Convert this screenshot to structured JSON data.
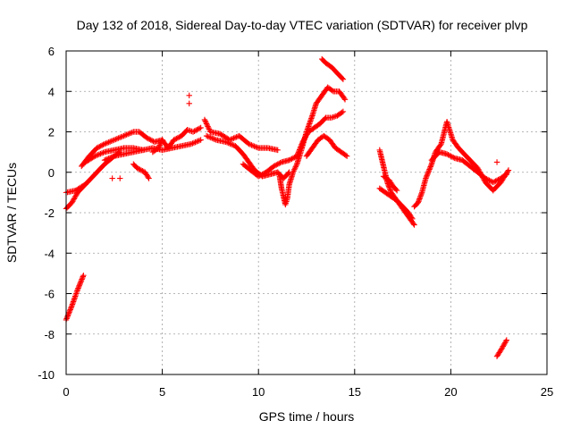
{
  "colors": {
    "series": "#ff0000",
    "grid": "#a0a0a0",
    "axis": "#000000",
    "background": "#ffffff"
  },
  "chart_data": {
    "type": "scatter",
    "title": "Day 132 of 2018, Sidereal Day-to-day VTEC variation (SDTVAR) for receiver plvp",
    "xlabel": "GPS time / hours",
    "ylabel": "SDTVAR / TECUs",
    "xlim": [
      0,
      25
    ],
    "ylim": [
      -10,
      6
    ],
    "grid": true,
    "marker": "+",
    "xticks": [
      0,
      5,
      10,
      15,
      20,
      25
    ],
    "yticks": [
      -10,
      -8,
      -6,
      -4,
      -2,
      0,
      2,
      4,
      6
    ],
    "series": [
      {
        "name": "SDTVAR",
        "segments": [
          [
            [
              0.0,
              -1.0
            ],
            [
              0.5,
              -0.9
            ],
            [
              1.0,
              -0.6
            ]
          ],
          [
            [
              0.0,
              -1.8
            ],
            [
              0.3,
              -1.5
            ],
            [
              0.6,
              -1.0
            ],
            [
              1.0,
              -0.6
            ],
            [
              1.5,
              -0.1
            ],
            [
              2.0,
              0.4
            ],
            [
              2.5,
              0.8
            ],
            [
              3.0,
              0.9
            ],
            [
              3.5,
              1.0
            ],
            [
              4.0,
              1.1
            ],
            [
              4.5,
              1.2
            ],
            [
              5.0,
              1.1
            ],
            [
              5.5,
              1.2
            ],
            [
              6.0,
              1.3
            ],
            [
              6.5,
              1.4
            ],
            [
              7.0,
              1.6
            ]
          ],
          [
            [
              0.8,
              0.3
            ],
            [
              1.2,
              0.8
            ],
            [
              1.6,
              1.2
            ],
            [
              2.0,
              1.4
            ],
            [
              2.5,
              1.6
            ],
            [
              3.0,
              1.8
            ],
            [
              3.5,
              2.0
            ],
            [
              3.8,
              2.0
            ],
            [
              4.2,
              1.7
            ],
            [
              4.6,
              1.5
            ],
            [
              5.0,
              1.6
            ]
          ],
          [
            [
              2.0,
              0.6
            ],
            [
              2.5,
              0.8
            ],
            [
              2.8,
              1.0
            ]
          ],
          [
            [
              1.0,
              0.5
            ],
            [
              1.5,
              0.8
            ],
            [
              2.0,
              1.0
            ],
            [
              2.5,
              1.1
            ],
            [
              3.0,
              1.2
            ],
            [
              3.5,
              1.2
            ],
            [
              4.0,
              1.1
            ]
          ],
          [
            [
              3.5,
              0.4
            ],
            [
              3.7,
              0.2
            ],
            [
              3.9,
              0.1
            ],
            [
              4.1,
              0.0
            ],
            [
              4.3,
              -0.3
            ]
          ],
          [
            [
              4.5,
              1.0
            ],
            [
              4.8,
              1.2
            ],
            [
              5.0,
              1.6
            ],
            [
              5.3,
              1.2
            ],
            [
              5.6,
              1.6
            ],
            [
              6.0,
              1.8
            ],
            [
              6.3,
              2.1
            ],
            [
              6.6,
              2.0
            ],
            [
              7.0,
              2.2
            ]
          ],
          [
            [
              7.2,
              2.6
            ],
            [
              7.5,
              2.0
            ],
            [
              8.0,
              1.9
            ],
            [
              8.5,
              1.6
            ],
            [
              9.0,
              1.8
            ],
            [
              9.5,
              1.4
            ],
            [
              10.0,
              1.2
            ],
            [
              10.5,
              1.2
            ],
            [
              11.0,
              1.1
            ]
          ],
          [
            [
              7.3,
              1.8
            ],
            [
              7.8,
              1.6
            ],
            [
              8.3,
              1.5
            ],
            [
              8.8,
              1.3
            ],
            [
              9.2,
              0.9
            ],
            [
              9.5,
              0.5
            ],
            [
              9.8,
              0.1
            ],
            [
              10.2,
              -0.2
            ],
            [
              10.6,
              -0.1
            ],
            [
              11.0,
              0.0
            ],
            [
              11.3,
              -0.3
            ],
            [
              11.6,
              0.0
            ]
          ],
          [
            [
              9.2,
              0.4
            ],
            [
              9.6,
              0.1
            ],
            [
              10.0,
              -0.2
            ],
            [
              10.4,
              0.0
            ],
            [
              10.8,
              0.3
            ],
            [
              11.2,
              0.5
            ],
            [
              11.6,
              0.6
            ],
            [
              12.0,
              0.8
            ]
          ],
          [
            [
              11.1,
              -0.2
            ],
            [
              11.2,
              -0.8
            ],
            [
              11.3,
              -1.2
            ],
            [
              11.4,
              -1.6
            ],
            [
              11.5,
              -1.3
            ],
            [
              11.6,
              -0.6
            ],
            [
              11.8,
              0.0
            ],
            [
              12.0,
              0.4
            ],
            [
              12.2,
              1.0
            ],
            [
              12.5,
              2.0
            ],
            [
              12.8,
              2.8
            ],
            [
              13.0,
              3.4
            ],
            [
              13.3,
              3.8
            ],
            [
              13.6,
              4.2
            ],
            [
              13.9,
              4.0
            ],
            [
              14.2,
              4.0
            ],
            [
              14.5,
              3.6
            ]
          ],
          [
            [
              12.0,
              0.8
            ],
            [
              12.3,
              1.5
            ],
            [
              12.6,
              2.0
            ],
            [
              12.9,
              2.2
            ],
            [
              13.2,
              2.4
            ],
            [
              13.5,
              2.7
            ],
            [
              13.8,
              2.7
            ],
            [
              14.1,
              2.8
            ],
            [
              14.4,
              3.0
            ]
          ],
          [
            [
              12.5,
              0.8
            ],
            [
              12.8,
              1.2
            ],
            [
              13.1,
              1.6
            ],
            [
              13.4,
              1.8
            ],
            [
              13.7,
              1.6
            ],
            [
              14.0,
              1.2
            ],
            [
              14.3,
              1.0
            ],
            [
              14.6,
              0.8
            ]
          ],
          [
            [
              13.3,
              5.6
            ],
            [
              13.5,
              5.4
            ],
            [
              13.8,
              5.2
            ],
            [
              14.0,
              5.0
            ],
            [
              14.2,
              4.8
            ],
            [
              14.4,
              4.6
            ]
          ],
          [
            [
              16.3,
              1.1
            ],
            [
              16.5,
              0.3
            ],
            [
              16.7,
              -0.5
            ],
            [
              16.9,
              -1.0
            ],
            [
              17.2,
              -1.4
            ],
            [
              17.5,
              -1.8
            ],
            [
              17.8,
              -2.2
            ],
            [
              18.1,
              -2.6
            ]
          ],
          [
            [
              16.3,
              -0.8
            ],
            [
              16.6,
              -1.0
            ],
            [
              16.9,
              -1.2
            ],
            [
              17.2,
              -1.4
            ],
            [
              17.5,
              -1.7
            ],
            [
              17.8,
              -2.0
            ],
            [
              18.0,
              -2.3
            ]
          ],
          [
            [
              16.5,
              -0.2
            ],
            [
              16.8,
              -0.4
            ],
            [
              17.0,
              -0.7
            ],
            [
              17.2,
              -0.9
            ]
          ],
          [
            [
              18.1,
              -1.7
            ],
            [
              18.3,
              -1.5
            ],
            [
              18.5,
              -1.0
            ],
            [
              18.7,
              -0.3
            ],
            [
              19.0,
              0.4
            ],
            [
              19.2,
              1.0
            ],
            [
              19.5,
              1.4
            ],
            [
              19.8,
              2.5
            ],
            [
              20.1,
              1.6
            ],
            [
              20.4,
              1.2
            ],
            [
              20.7,
              0.9
            ],
            [
              21.0,
              0.6
            ],
            [
              21.4,
              0.2
            ],
            [
              21.8,
              -0.5
            ],
            [
              22.2,
              -0.9
            ],
            [
              22.6,
              -0.5
            ],
            [
              23.0,
              0.1
            ]
          ],
          [
            [
              19.0,
              0.6
            ],
            [
              19.4,
              1.0
            ],
            [
              19.8,
              0.9
            ],
            [
              20.2,
              0.7
            ],
            [
              20.6,
              0.6
            ],
            [
              21.0,
              0.3
            ],
            [
              21.4,
              0.0
            ],
            [
              21.8,
              -0.3
            ],
            [
              22.2,
              -0.5
            ],
            [
              22.6,
              -0.3
            ],
            [
              22.9,
              -0.1
            ]
          ],
          [
            [
              0.0,
              -7.3
            ],
            [
              0.3,
              -6.6
            ],
            [
              0.6,
              -5.8
            ],
            [
              0.9,
              -5.1
            ]
          ],
          [
            [
              22.4,
              -9.1
            ],
            [
              22.6,
              -8.8
            ],
            [
              22.9,
              -8.3
            ]
          ]
        ]
      }
    ],
    "isolated_points": [
      [
        2.4,
        -0.3
      ],
      [
        2.8,
        -0.3
      ],
      [
        6.4,
        3.8
      ],
      [
        6.4,
        3.4
      ],
      [
        22.4,
        0.5
      ]
    ]
  }
}
